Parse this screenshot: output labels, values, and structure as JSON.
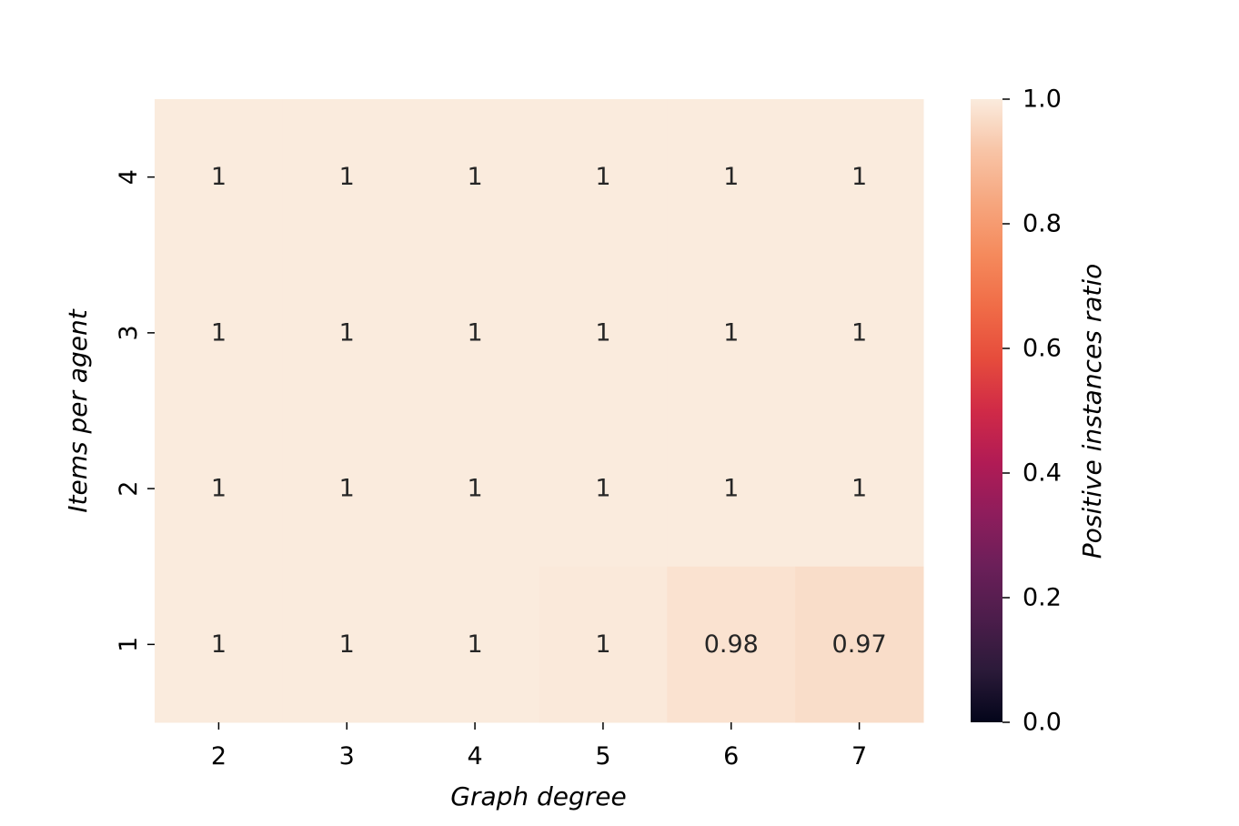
{
  "chart_data": {
    "type": "heatmap",
    "title": "",
    "xlabel": "Graph degree",
    "ylabel": "Items per agent",
    "x_categories": [
      "2",
      "3",
      "4",
      "5",
      "6",
      "7"
    ],
    "y_categories": [
      "4",
      "3",
      "2",
      "1"
    ],
    "values": [
      [
        1.0,
        1.0,
        1.0,
        1.0,
        1.0,
        1.0
      ],
      [
        1.0,
        1.0,
        1.0,
        1.0,
        1.0,
        1.0
      ],
      [
        1.0,
        1.0,
        1.0,
        1.0,
        1.0,
        1.0
      ],
      [
        1.0,
        1.0,
        1.0,
        0.995,
        0.98,
        0.97
      ]
    ],
    "annotations": [
      [
        "1",
        "1",
        "1",
        "1",
        "1",
        "1"
      ],
      [
        "1",
        "1",
        "1",
        "1",
        "1",
        "1"
      ],
      [
        "1",
        "1",
        "1",
        "1",
        "1",
        "1"
      ],
      [
        "1",
        "1",
        "1",
        "1",
        "0.98",
        "0.97"
      ]
    ],
    "colorbar": {
      "label": "Positive instances ratio",
      "range": [
        0.0,
        1.0
      ],
      "ticks": [
        "0.0",
        "0.2",
        "0.4",
        "0.6",
        "0.8",
        "1.0"
      ],
      "colormap": "rocket",
      "colors": [
        "#03051a",
        "#2b1a39",
        "#4c1d4b",
        "#6b1f59",
        "#8e1d5c",
        "#b11b55",
        "#d02a47",
        "#e64c3c",
        "#f06c47",
        "#f58a5c",
        "#f6a67e",
        "#f8c4a6",
        "#faebdd"
      ]
    }
  }
}
